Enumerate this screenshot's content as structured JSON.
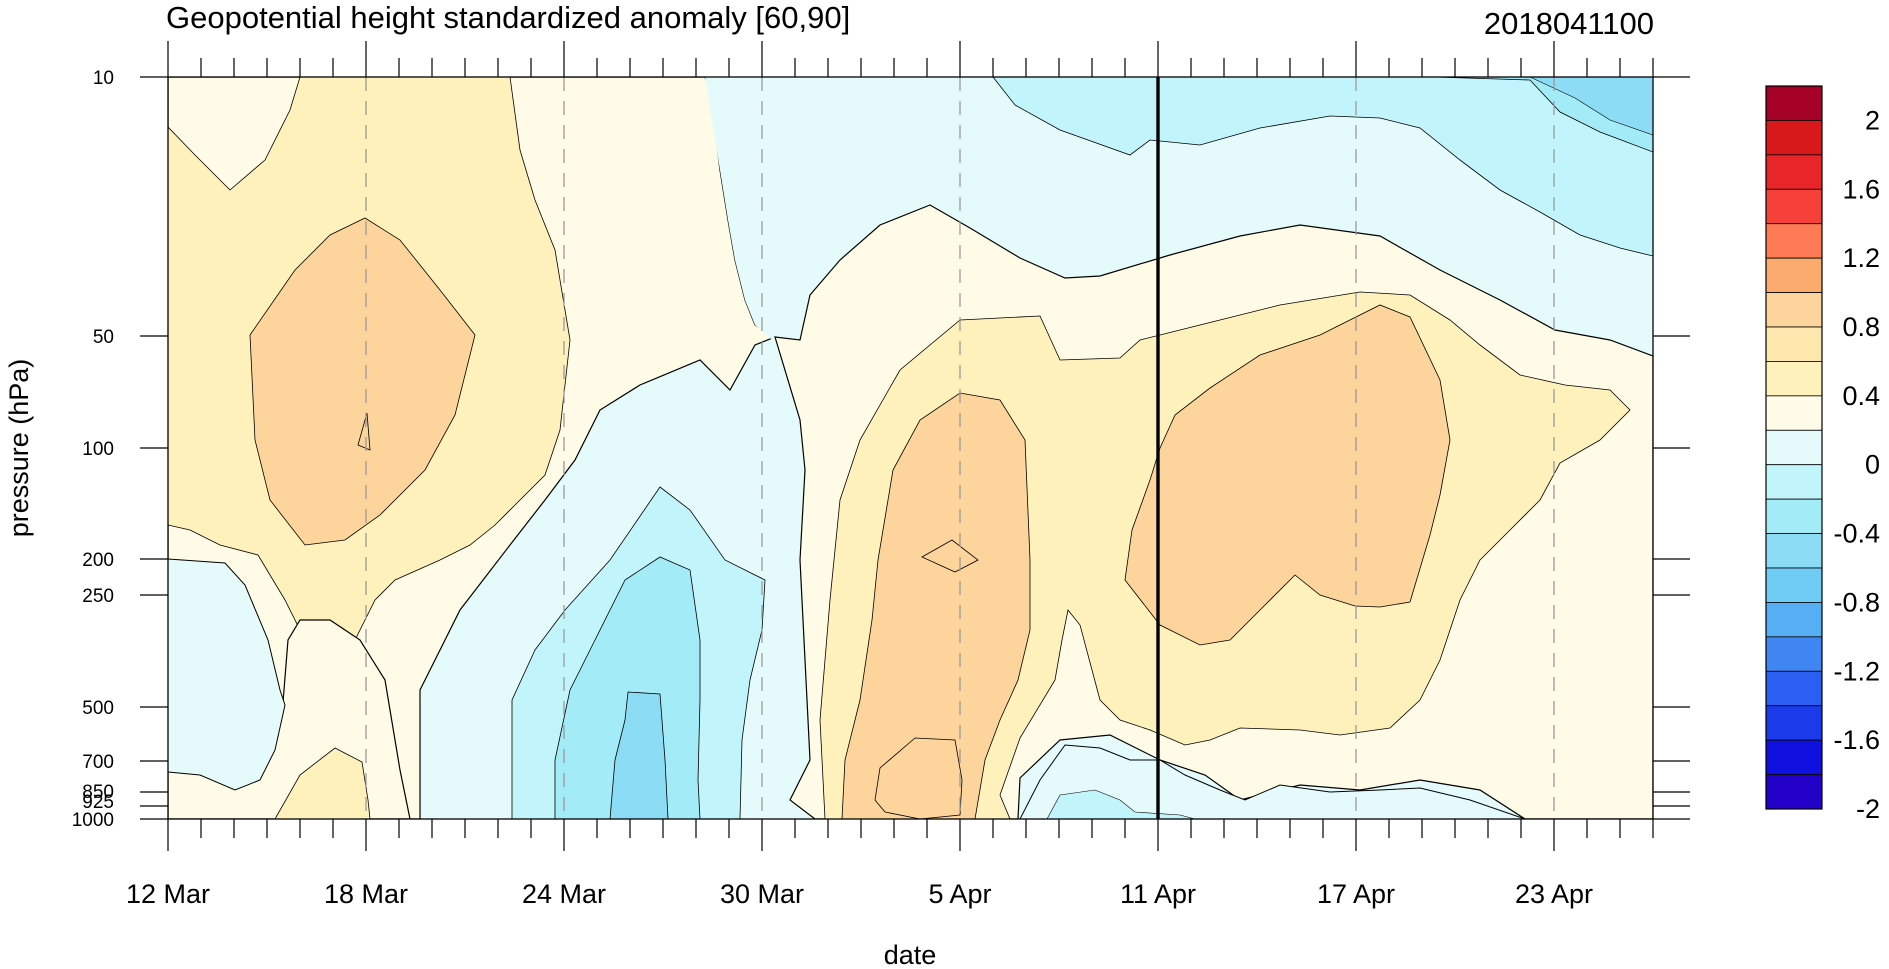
{
  "chart_data": {
    "type": "heatmap",
    "title": "Geopotential height standardized anomaly [60,90]",
    "date_stamp": "2018041100",
    "xlabel": "date",
    "ylabel": "pressure (hPa)",
    "x_tick_labels": [
      "12 Mar",
      "18 Mar",
      "24 Mar",
      "30 Mar",
      "5 Apr",
      "11 Apr",
      "17 Apr",
      "23 Apr"
    ],
    "x_range": [
      "2018-03-12",
      "2018-04-26"
    ],
    "y_scale": "log-pressure (reversed)",
    "y_range": [
      1000,
      10
    ],
    "y_tick_labels": [
      10,
      50,
      100,
      200,
      250,
      500,
      700,
      850,
      925,
      1000
    ],
    "vertical_marker": "2018-04-11",
    "colorbar_labels": [
      2,
      1.6,
      1.2,
      0.8,
      0.4,
      0,
      -0.4,
      -0.8,
      -1.2,
      -1.6,
      -2
    ],
    "colorbar_colors": [
      "#a50026",
      "#d7191c",
      "#e8262a",
      "#f6403a",
      "#fe7b56",
      "#fcab6e",
      "#fdd49b",
      "#fde7ad",
      "#fef1bb",
      "#fffbe6",
      "#e5fbfb",
      "#c2f5fb",
      "#a4ebf8",
      "#8ddcf6",
      "#70ccf5",
      "#56aef4",
      "#3f86f3",
      "#2a5ff1",
      "#1b3bea",
      "#1010e0",
      "#2200c8"
    ],
    "contour_interval": 0.2,
    "fill_regions": [
      {
        "level": "0 to 0.2",
        "color": "#fffbe6"
      },
      {
        "level": "0.2 to 0.4",
        "color": "#fef1bb"
      },
      {
        "level": "0.4 to 0.6",
        "color": "#fde7ad"
      },
      {
        "level": "0.6 to 0.8",
        "color": "#fdd49b"
      },
      {
        "level": "-0.2 to 0",
        "color": "#e5fbfb"
      },
      {
        "level": "-0.4 to -0.2",
        "color": "#c2f5fb"
      },
      {
        "level": "-0.6 to -0.4",
        "color": "#a4ebf8"
      }
    ]
  }
}
